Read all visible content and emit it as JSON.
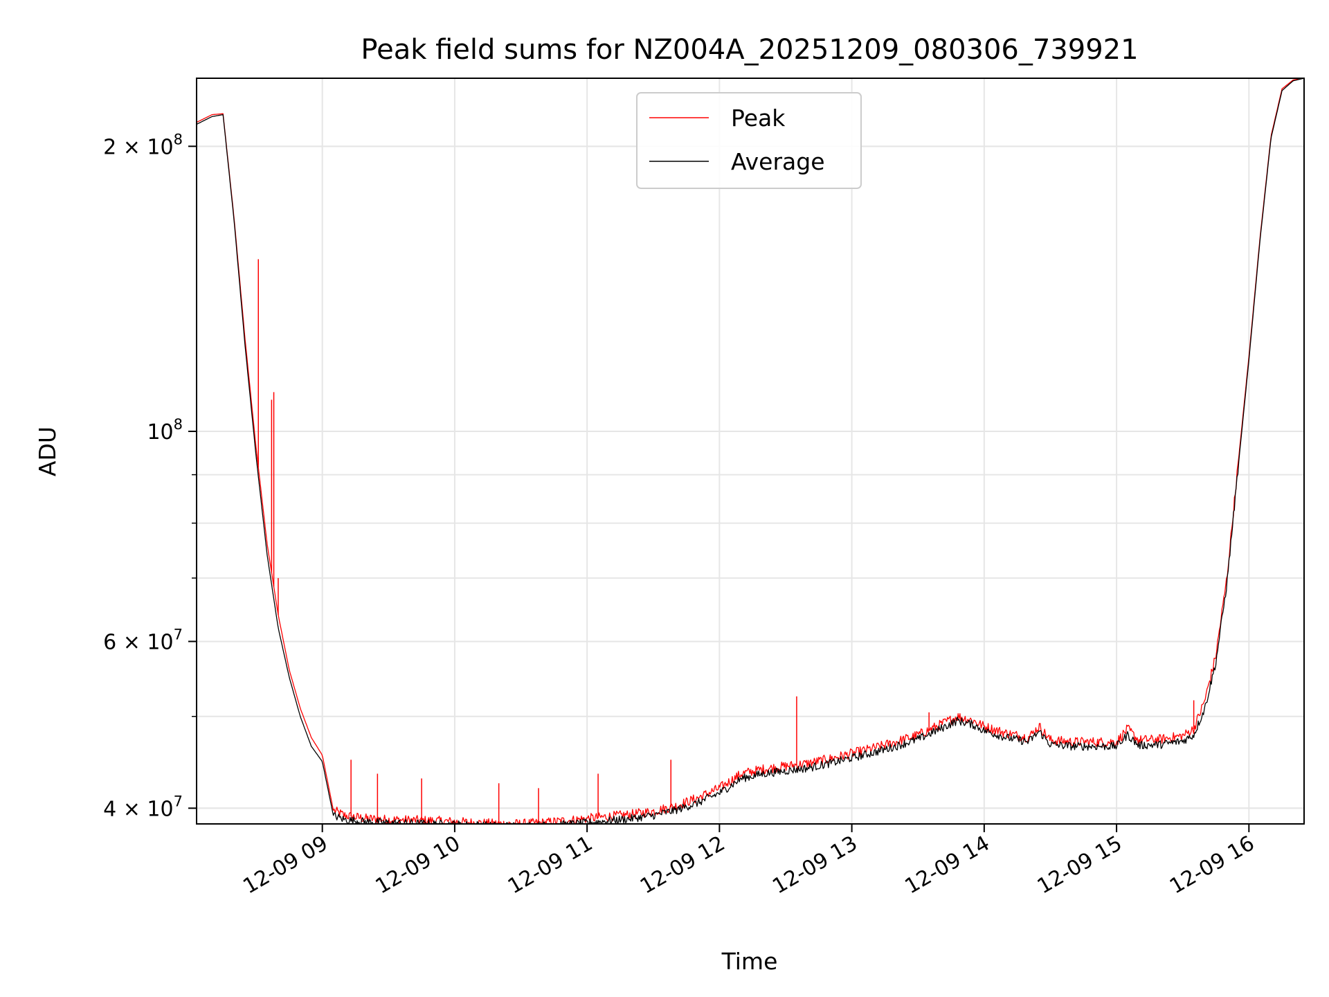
{
  "chart_data": {
    "type": "line",
    "title": "Peak field sums for NZ004A_20251209_080306_739921",
    "xlabel": "Time",
    "ylabel": "ADU",
    "yscale": "log",
    "xlim": [
      "12-09 08:03",
      "12-09 16:25"
    ],
    "ylim": [
      38500000,
      236000000
    ],
    "grid": true,
    "legend": "upper center",
    "x_ticks": [
      "12-09 09",
      "12-09 10",
      "12-09 11",
      "12-09 12",
      "12-09 13",
      "12-09 14",
      "12-09 15",
      "12-09 16"
    ],
    "y_ticks": [
      {
        "value": 40000000,
        "mantissa": "4",
        "exponent": "7"
      },
      {
        "value": 60000000,
        "mantissa": "6",
        "exponent": "7"
      },
      {
        "value": 100000000,
        "mantissa": "",
        "exponent": "8"
      },
      {
        "value": 200000000,
        "mantissa": "2",
        "exponent": "8"
      }
    ],
    "series": [
      {
        "name": "Peak",
        "color": "#ff0000",
        "x": [
          "08:03",
          "08:10",
          "08:15",
          "08:20",
          "08:25",
          "08:30",
          "08:35",
          "08:40",
          "08:45",
          "08:50",
          "08:55",
          "09:00",
          "09:05",
          "09:10",
          "09:20",
          "09:30",
          "09:40",
          "09:50",
          "10:00",
          "10:10",
          "10:20",
          "10:30",
          "10:40",
          "10:50",
          "11:00",
          "11:10",
          "11:20",
          "11:30",
          "11:40",
          "11:50",
          "12:00",
          "12:10",
          "12:20",
          "12:30",
          "12:40",
          "12:50",
          "13:00",
          "13:10",
          "13:20",
          "13:30",
          "13:40",
          "13:48",
          "13:55",
          "14:00",
          "14:10",
          "14:20",
          "14:25",
          "14:30",
          "14:40",
          "14:50",
          "15:00",
          "15:05",
          "15:10",
          "15:20",
          "15:30",
          "15:35",
          "15:40",
          "15:45",
          "15:50",
          "15:55",
          "16:00",
          "16:05",
          "16:10",
          "16:15",
          "16:20",
          "16:25"
        ],
        "y": [
          212000000,
          216000000,
          216500000,
          168000000,
          125000000,
          96000000,
          76000000,
          64000000,
          56000000,
          51000000,
          47500000,
          45500000,
          39800000,
          39300000,
          39000000,
          38900000,
          38850000,
          38800000,
          38700000,
          38600000,
          38500000,
          38500000,
          38600000,
          38800000,
          39000000,
          39200000,
          39400000,
          39700000,
          40200000,
          41000000,
          42000000,
          43500000,
          44000000,
          44300000,
          44600000,
          45100000,
          45700000,
          46300000,
          47000000,
          47800000,
          49000000,
          50000000,
          49500000,
          48800000,
          48000000,
          47500000,
          48800000,
          47200000,
          47000000,
          47000000,
          47000000,
          48500000,
          47200000,
          47300000,
          47700000,
          48500000,
          52000000,
          58000000,
          70000000,
          92000000,
          120000000,
          160000000,
          205000000,
          230000000,
          235000000,
          236000000
        ],
        "spikes": [
          {
            "x": "08:31",
            "y": 152000000
          },
          {
            "x": "08:37",
            "y": 108000000
          },
          {
            "x": "08:38",
            "y": 110000000
          },
          {
            "x": "08:40",
            "y": 70000000
          },
          {
            "x": "09:13",
            "y": 45000000
          },
          {
            "x": "09:25",
            "y": 43500000
          },
          {
            "x": "09:45",
            "y": 43000000
          },
          {
            "x": "10:20",
            "y": 42500000
          },
          {
            "x": "10:38",
            "y": 42000000
          },
          {
            "x": "11:05",
            "y": 43500000
          },
          {
            "x": "11:38",
            "y": 45000000
          },
          {
            "x": "12:35",
            "y": 52500000
          },
          {
            "x": "13:35",
            "y": 50500000
          },
          {
            "x": "15:35",
            "y": 52000000
          }
        ]
      },
      {
        "name": "Average",
        "color": "#000000",
        "x": [
          "08:03",
          "08:10",
          "08:15",
          "08:20",
          "08:25",
          "08:30",
          "08:35",
          "08:40",
          "08:45",
          "08:50",
          "08:55",
          "09:00",
          "09:05",
          "09:10",
          "09:20",
          "09:30",
          "09:40",
          "09:50",
          "10:00",
          "10:10",
          "10:20",
          "10:30",
          "10:40",
          "10:50",
          "11:00",
          "11:10",
          "11:20",
          "11:30",
          "11:40",
          "11:50",
          "12:00",
          "12:10",
          "12:20",
          "12:30",
          "12:40",
          "12:50",
          "13:00",
          "13:10",
          "13:20",
          "13:30",
          "13:40",
          "13:48",
          "13:55",
          "14:00",
          "14:10",
          "14:20",
          "14:25",
          "14:30",
          "14:40",
          "14:50",
          "15:00",
          "15:05",
          "15:10",
          "15:20",
          "15:30",
          "15:35",
          "15:40",
          "15:45",
          "15:50",
          "15:55",
          "16:00",
          "16:05",
          "16:10",
          "16:15",
          "16:20",
          "16:25"
        ],
        "y": [
          211000000,
          215000000,
          216000000,
          167000000,
          123000000,
          94000000,
          74000000,
          62000000,
          55000000,
          50000000,
          46500000,
          44800000,
          39300000,
          38900000,
          38700000,
          38600000,
          38550000,
          38500000,
          38450000,
          38400000,
          38300000,
          38300000,
          38350000,
          38450000,
          38600000,
          38800000,
          39000000,
          39300000,
          39800000,
          40500000,
          41500000,
          43000000,
          43500000,
          43800000,
          44100000,
          44600000,
          45200000,
          45800000,
          46500000,
          47300000,
          48500000,
          49500000,
          49000000,
          48300000,
          47500000,
          47000000,
          48200000,
          46700000,
          46500000,
          46500000,
          46500000,
          47800000,
          46600000,
          46700000,
          47100000,
          47800000,
          51000000,
          57000000,
          69000000,
          91000000,
          119000000,
          159000000,
          204000000,
          229000000,
          234500000,
          236000000
        ]
      }
    ]
  }
}
